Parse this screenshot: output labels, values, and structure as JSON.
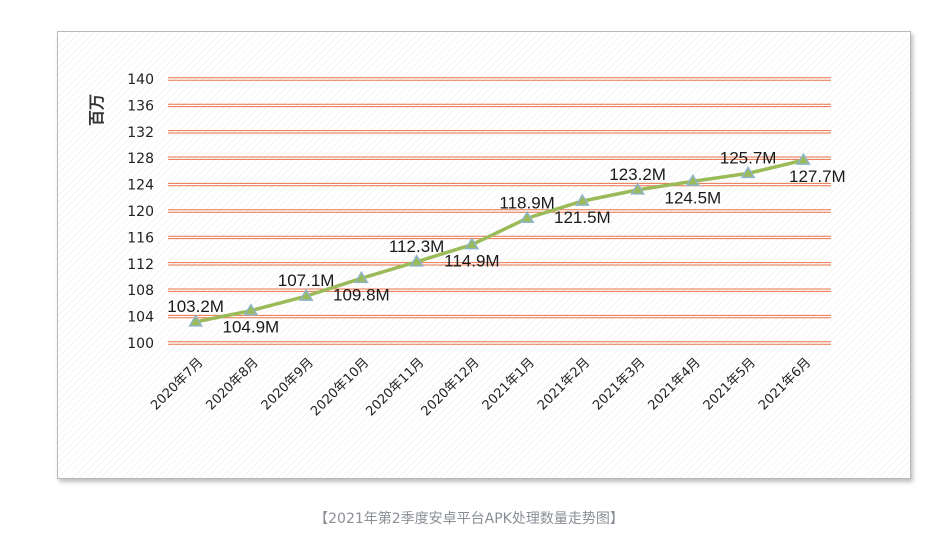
{
  "caption": "【2021年第2季度安卓平台APK处理数量走势图】",
  "chart_data": {
    "type": "line",
    "ylabel": "百万",
    "ylim": [
      100,
      140
    ],
    "yticks": [
      100,
      104,
      108,
      112,
      116,
      120,
      124,
      128,
      132,
      136,
      140
    ],
    "categories": [
      "2020年7月",
      "2020年8月",
      "2020年9月",
      "2020年10月",
      "2020年11月",
      "2020年12月",
      "2021年1月",
      "2021年2月",
      "2021年3月",
      "2021年4月",
      "2021年5月",
      "2021年6月"
    ],
    "series": [
      {
        "values": [
          103.2,
          104.9,
          107.1,
          109.8,
          112.3,
          114.9,
          118.9,
          121.5,
          123.2,
          124.5,
          125.7,
          127.7
        ],
        "labels": [
          "103.2M",
          "104.9M",
          "107.1M",
          "109.8M",
          "112.3M",
          "114.9M",
          "118.9M",
          "121.5M",
          "123.2M",
          "124.5M",
          "125.7M",
          "127.7M"
        ],
        "color": "#9bbb59",
        "marker_color": "#8eb4c8"
      }
    ],
    "gridline_color": "#e8734a",
    "grid": true,
    "legend": "none"
  }
}
